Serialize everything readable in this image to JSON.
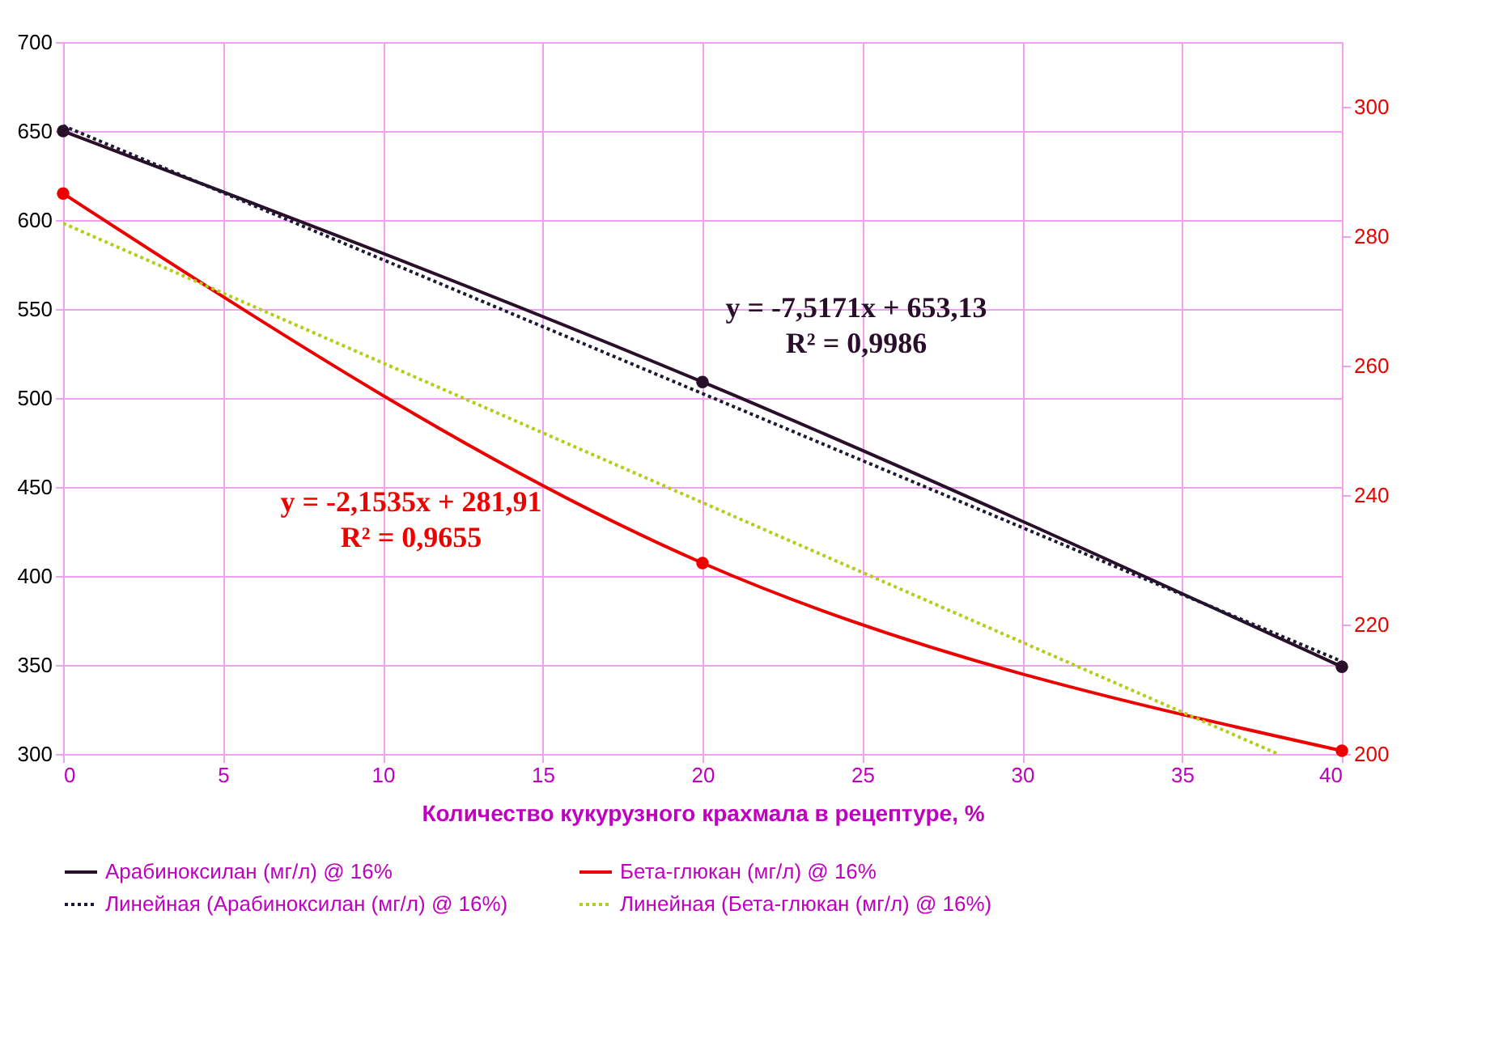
{
  "chart_data": {
    "type": "line",
    "xlabel": "Количество кукурузного крахмала в рецептуре, %",
    "xlim": [
      0,
      40
    ],
    "xticks": [
      0,
      5,
      10,
      15,
      20,
      25,
      30,
      35,
      40
    ],
    "ylim": [
      300,
      700
    ],
    "yticks": [
      300,
      350,
      400,
      450,
      500,
      550,
      600,
      650,
      700
    ],
    "y2lim": [
      200,
      310
    ],
    "y2ticks": [
      200,
      220,
      240,
      260,
      280,
      300
    ],
    "grid": true,
    "legend": "bottom",
    "series": [
      {
        "name": "Арабиноксилан (мг/л) @ 16%",
        "color": "#2a0f2a",
        "x": [
          0,
          20,
          40
        ],
        "values": [
          650,
          509,
          349
        ],
        "marker": "circle",
        "line_style": "solid"
      },
      {
        "name": "Бета-глюкан (мг/л) @ 16%",
        "color": "#ee0000",
        "x": [
          0,
          20,
          40
        ],
        "values": [
          286.6,
          229.5,
          200.5
        ],
        "axis": "y2",
        "marker": "circle",
        "line_style": "solid"
      },
      {
        "name": "Линейная (Арабиноксилан (мг/л) @ 16%)",
        "color": "#1a1a33",
        "x": [
          0,
          40
        ],
        "values": [
          653,
          352
        ],
        "marker": "none",
        "line_style": "dotted"
      },
      {
        "name": "Линейная (Бета-глюкан (мг/л) @ 16%)",
        "color": "#b5cc18",
        "x": [
          0,
          38
        ],
        "values": [
          282,
          200
        ],
        "axis": "y2",
        "marker": "none",
        "line_style": "dotted"
      }
    ],
    "annotations": [
      "y = -7,5171x + 653,13\nR² = 0,9986",
      "y = -2,1535x + 281,91\nR² = 0,9655"
    ]
  }
}
